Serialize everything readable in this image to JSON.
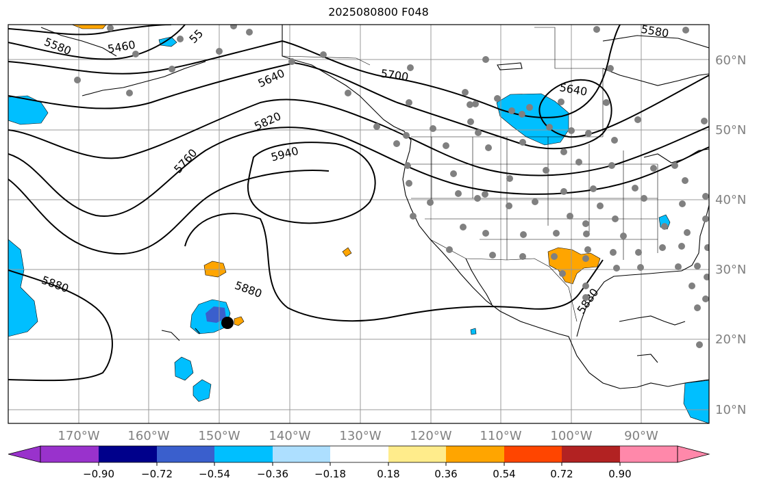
{
  "title": "2025080800 F048",
  "map": {
    "lon_range": [
      "180°W",
      "80°W"
    ],
    "lat_range": [
      "8°N",
      "65°N"
    ],
    "lon_labels": [
      "170°W",
      "160°W",
      "150°W",
      "140°W",
      "130°W",
      "120°W",
      "110°W",
      "100°W",
      "90°W"
    ],
    "lat_labels": [
      "60°N",
      "50°N",
      "40°N",
      "30°N",
      "20°N",
      "10°N"
    ],
    "contour_labels": [
      {
        "id": "c5580a",
        "text": "5580"
      },
      {
        "id": "c5460",
        "text": "5460"
      },
      {
        "id": "c55x",
        "text": "55"
      },
      {
        "id": "c5580b",
        "text": "5580"
      },
      {
        "id": "c5640a",
        "text": "5640"
      },
      {
        "id": "c5700",
        "text": "5700"
      },
      {
        "id": "c5640b",
        "text": "5640"
      },
      {
        "id": "c5820",
        "text": "5820"
      },
      {
        "id": "c5760",
        "text": "5760"
      },
      {
        "id": "c5940",
        "text": "5940"
      },
      {
        "id": "c5880a",
        "text": "5880"
      },
      {
        "id": "c5880b",
        "text": "5880"
      },
      {
        "id": "c5880c",
        "text": "5880"
      }
    ],
    "colors": {
      "land_line": "#000000",
      "grid": "#999999",
      "station_dot": "#808080",
      "marker": "#000000"
    }
  },
  "colorbar": {
    "tick_labels": [
      "−0.90",
      "−0.72",
      "−0.54",
      "−0.36",
      "−0.18",
      "0.18",
      "0.36",
      "0.54",
      "0.72",
      "0.90"
    ],
    "colors": [
      "#9932CC",
      "#00008B",
      "#3A5FCD",
      "#00BFFF",
      "#ADDFFF",
      "#FFFFFF",
      "#FFEC8B",
      "#FFA500",
      "#FF4500",
      "#B22222",
      "#FF88AA"
    ]
  }
}
